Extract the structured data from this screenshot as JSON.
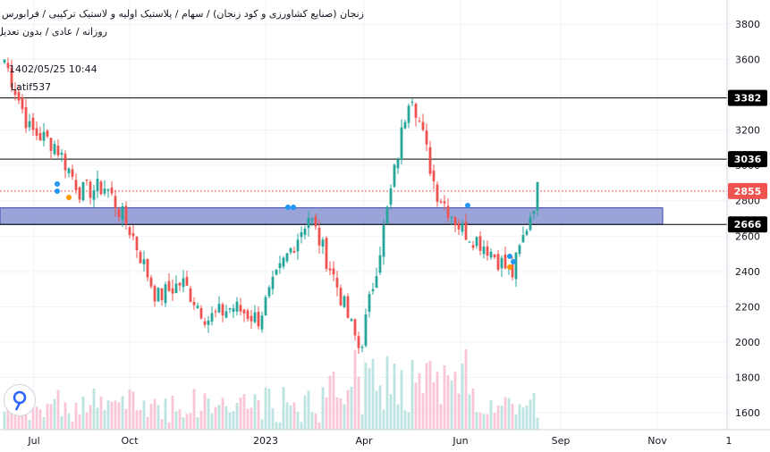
{
  "header": {
    "title_line1": "زنجان (صنایع کشاورزی و کود زنجان) / سهام / پلاستیک اولیه و لاستیک ترکیبی / فرابورس",
    "title_line2": "روزانه / عادی / بدون تعدیل",
    "date_label": "1402/05/25 10:44",
    "author": "Latif537"
  },
  "colors": {
    "up": "#26a69a",
    "down": "#ef5350",
    "zone_fill": "#7986cb",
    "zone_border": "#3949ab",
    "line": "#000000",
    "last_price": "#ef5350",
    "signal_blue": "#2196f3",
    "signal_orange": "#ff9800"
  },
  "chart_data": {
    "type": "candlestick",
    "y_axis": {
      "min": 1500,
      "max": 3900,
      "ticks": [
        "1600",
        "1800",
        "2000",
        "2200",
        "2400",
        "2600",
        "2800",
        "3000",
        "3200",
        "3400",
        "3600",
        "3800"
      ]
    },
    "x_axis": {
      "ticks": [
        "Jul",
        "Oct",
        "2023",
        "Apr",
        "Jun",
        "Sep",
        "Nov",
        "1"
      ]
    },
    "horizontal_levels": [
      {
        "label": "3382",
        "value": 3382,
        "style": "solid"
      },
      {
        "label": "3036",
        "value": 3036,
        "style": "solid"
      },
      {
        "label": "2666",
        "value": 2666,
        "style": "solid"
      }
    ],
    "last_price": {
      "label": "2855",
      "value": 2855,
      "style": "dotted"
    },
    "support_zone": {
      "low": 2666,
      "high": 2760
    },
    "price_path": [
      [
        3600,
        3350
      ],
      [
        3200,
        3050
      ],
      [
        3120,
        2950
      ],
      [
        2850,
        2700
      ],
      [
        2880,
        3050
      ],
      [
        2620,
        2500
      ],
      [
        2250,
        2150
      ],
      [
        2340,
        2400
      ],
      [
        2130,
        2050
      ],
      [
        2200,
        2240
      ],
      [
        2130,
        2240
      ],
      [
        2450,
        2580
      ],
      [
        2720,
        2630
      ],
      [
        2360,
        1860
      ],
      [
        1950,
        2080
      ],
      [
        2680,
        2960
      ],
      [
        3450,
        3270
      ],
      [
        2860,
        3010
      ],
      [
        2640,
        2560
      ],
      [
        2540,
        2590
      ],
      [
        2380,
        2560
      ],
      [
        2860,
        3020
      ]
    ]
  }
}
